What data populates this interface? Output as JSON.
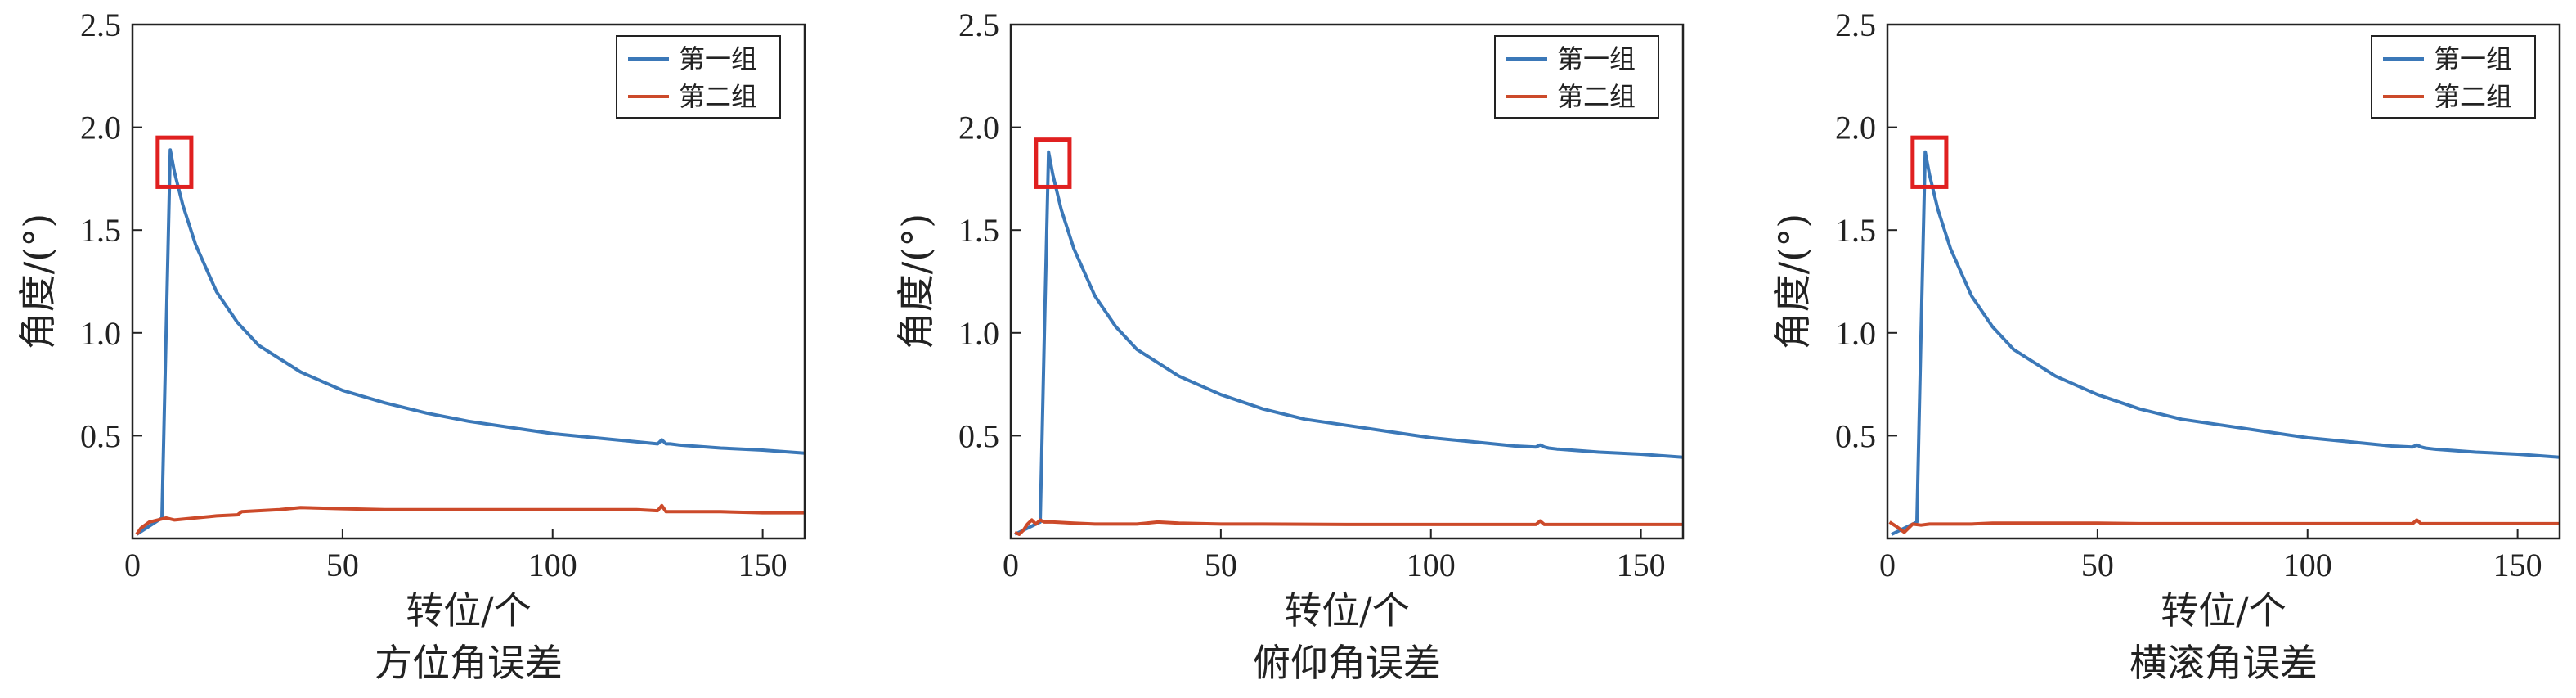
{
  "colors": {
    "series1": "#3b78b8",
    "series2": "#cc4a2a",
    "highlight": "#e02020",
    "axis": "#222222"
  },
  "chart_data": [
    {
      "type": "line",
      "title": "方位角误差",
      "xlabel": "转位/个",
      "ylabel": "角度/(°)",
      "xlim": [
        0,
        160
      ],
      "ylim": [
        0,
        2.5
      ],
      "xticks": [
        0,
        50,
        100,
        150
      ],
      "yticks": [
        0.5,
        1.0,
        1.5,
        2.0,
        2.5
      ],
      "ytick_labels": [
        "0.5",
        "1.0",
        "1.5",
        "2.0",
        "2.5"
      ],
      "grid": false,
      "legend": "top-right",
      "highlight_box": {
        "x": [
          6,
          14
        ],
        "y": [
          1.71,
          1.95
        ]
      },
      "series": [
        {
          "name": "第一组",
          "x": [
            1,
            4,
            7,
            8,
            9,
            10,
            12,
            15,
            20,
            25,
            30,
            40,
            50,
            60,
            70,
            80,
            90,
            100,
            110,
            120,
            125,
            126,
            127,
            128,
            130,
            140,
            150,
            160
          ],
          "y": [
            0.02,
            0.06,
            0.1,
            1.0,
            1.89,
            1.78,
            1.62,
            1.43,
            1.2,
            1.05,
            0.94,
            0.81,
            0.72,
            0.66,
            0.61,
            0.57,
            0.54,
            0.51,
            0.49,
            0.47,
            0.46,
            0.48,
            0.46,
            0.46,
            0.455,
            0.44,
            0.43,
            0.415
          ]
        },
        {
          "name": "第二组",
          "x": [
            1,
            2,
            4,
            6,
            8,
            10,
            15,
            20,
            25,
            26,
            30,
            35,
            40,
            50,
            60,
            80,
            100,
            120,
            125,
            126,
            127,
            130,
            140,
            150,
            160
          ],
          "y": [
            0.02,
            0.05,
            0.08,
            0.09,
            0.1,
            0.09,
            0.1,
            0.11,
            0.115,
            0.13,
            0.135,
            0.14,
            0.15,
            0.145,
            0.14,
            0.14,
            0.14,
            0.14,
            0.135,
            0.16,
            0.13,
            0.13,
            0.13,
            0.125,
            0.125
          ]
        }
      ]
    },
    {
      "type": "line",
      "title": "俯仰角误差",
      "xlabel": "转位/个",
      "ylabel": "角度/(°)",
      "xlim": [
        0,
        160
      ],
      "ylim": [
        0,
        2.5
      ],
      "xticks": [
        0,
        50,
        100,
        150
      ],
      "yticks": [
        0.5,
        1.0,
        1.5,
        2.0,
        2.5
      ],
      "ytick_labels": [
        "0.5",
        "1.0",
        "1.5",
        "2.0",
        "2.5"
      ],
      "grid": false,
      "legend": "top-right",
      "highlight_box": {
        "x": [
          6,
          14
        ],
        "y": [
          1.71,
          1.94
        ]
      },
      "series": [
        {
          "name": "第一组",
          "x": [
            1,
            4,
            7,
            8,
            9,
            10,
            12,
            15,
            20,
            25,
            30,
            40,
            50,
            60,
            70,
            80,
            90,
            100,
            110,
            120,
            125,
            126,
            127,
            128,
            130,
            140,
            150,
            160
          ],
          "y": [
            0.02,
            0.05,
            0.08,
            1.0,
            1.88,
            1.77,
            1.6,
            1.41,
            1.18,
            1.03,
            0.92,
            0.79,
            0.7,
            0.63,
            0.58,
            0.55,
            0.52,
            0.49,
            0.47,
            0.45,
            0.445,
            0.455,
            0.445,
            0.44,
            0.435,
            0.42,
            0.41,
            0.395
          ]
        },
        {
          "name": "第二组",
          "x": [
            1,
            2,
            3,
            4,
            5,
            6,
            7,
            8,
            10,
            15,
            20,
            30,
            35,
            40,
            50,
            60,
            80,
            100,
            120,
            125,
            126,
            127,
            130,
            140,
            150,
            160
          ],
          "y": [
            0.03,
            0.02,
            0.04,
            0.07,
            0.09,
            0.07,
            0.09,
            0.08,
            0.08,
            0.075,
            0.07,
            0.07,
            0.08,
            0.075,
            0.07,
            0.07,
            0.068,
            0.068,
            0.068,
            0.068,
            0.085,
            0.068,
            0.068,
            0.068,
            0.068,
            0.068
          ]
        }
      ]
    },
    {
      "type": "line",
      "title": "横滚角误差",
      "xlabel": "转位/个",
      "ylabel": "角度/(°)",
      "xlim": [
        0,
        160
      ],
      "ylim": [
        0,
        2.5
      ],
      "xticks": [
        0,
        50,
        100,
        150
      ],
      "yticks": [
        0.5,
        1.0,
        1.5,
        2.0,
        2.5
      ],
      "ytick_labels": [
        "0.5",
        "1.0",
        "1.5",
        "2.0",
        "2.5"
      ],
      "grid": false,
      "legend": "top-right",
      "highlight_box": {
        "x": [
          6,
          14
        ],
        "y": [
          1.71,
          1.95
        ]
      },
      "series": [
        {
          "name": "第一组",
          "x": [
            1,
            4,
            7,
            8,
            9,
            10,
            12,
            15,
            20,
            25,
            30,
            40,
            50,
            60,
            70,
            80,
            90,
            100,
            110,
            120,
            125,
            126,
            127,
            128,
            130,
            140,
            150,
            160
          ],
          "y": [
            0.02,
            0.05,
            0.08,
            1.0,
            1.88,
            1.77,
            1.6,
            1.41,
            1.18,
            1.03,
            0.92,
            0.79,
            0.7,
            0.63,
            0.58,
            0.55,
            0.52,
            0.49,
            0.47,
            0.45,
            0.445,
            0.455,
            0.445,
            0.44,
            0.435,
            0.42,
            0.41,
            0.395
          ]
        },
        {
          "name": "第二组",
          "x": [
            0.5,
            2,
            4,
            5,
            6,
            8,
            10,
            15,
            20,
            25,
            30,
            40,
            50,
            60,
            80,
            100,
            120,
            125,
            126,
            127,
            130,
            140,
            150,
            160
          ],
          "y": [
            0.08,
            0.06,
            0.03,
            0.05,
            0.07,
            0.065,
            0.07,
            0.07,
            0.07,
            0.075,
            0.075,
            0.075,
            0.075,
            0.072,
            0.072,
            0.072,
            0.072,
            0.072,
            0.09,
            0.072,
            0.072,
            0.072,
            0.072,
            0.072
          ]
        }
      ]
    }
  ]
}
